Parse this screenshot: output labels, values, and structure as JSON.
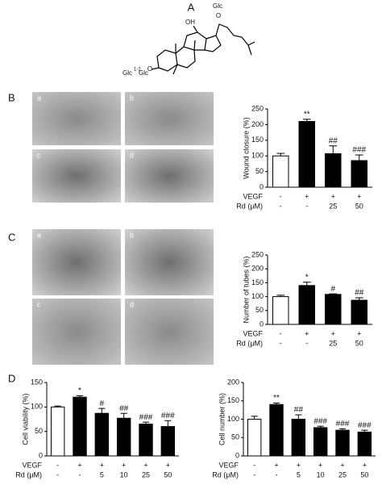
{
  "panels": {
    "labels": [
      "A",
      "B",
      "C",
      "D"
    ],
    "image_labels_b": [
      "a",
      "b",
      "c",
      "d"
    ],
    "image_labels_c": [
      "a",
      "b",
      "c",
      "d"
    ]
  },
  "structure": {
    "labels": [
      "OH",
      "Glc",
      "O",
      "Glc",
      "1-2",
      "Glc",
      "O"
    ]
  },
  "chart_data": [
    {
      "type": "bar",
      "y_label": "Wound closure (%)",
      "ylim": [
        0,
        250
      ],
      "yticks": [
        0,
        50,
        100,
        150,
        200,
        250
      ],
      "values": [
        100,
        210,
        107,
        85
      ],
      "errors": [
        8,
        7,
        25,
        18
      ],
      "colors": [
        "#ffffff",
        "#000000",
        "#000000",
        "#000000"
      ],
      "annotations": [
        null,
        "**",
        "##",
        "###"
      ],
      "rows": [
        {
          "label": "VEGF",
          "values": [
            "-",
            "+",
            "+",
            "+"
          ]
        },
        {
          "label": "Rd (μM)",
          "values": [
            "-",
            "-",
            "25",
            "50"
          ]
        }
      ]
    },
    {
      "type": "bar",
      "y_label": "Number of tubes (%)",
      "ylim": [
        0,
        250
      ],
      "yticks": [
        0,
        50,
        100,
        150,
        200,
        250
      ],
      "values": [
        100,
        140,
        108,
        87
      ],
      "errors": [
        5,
        12,
        2,
        9
      ],
      "colors": [
        "#ffffff",
        "#000000",
        "#000000",
        "#000000"
      ],
      "annotations": [
        null,
        "*",
        "#",
        "##"
      ],
      "rows": [
        {
          "label": "VEGF",
          "values": [
            "-",
            "+",
            "+",
            "+"
          ]
        },
        {
          "label": "Rd (μM)",
          "values": [
            "-",
            "-",
            "25",
            "50"
          ]
        }
      ]
    },
    {
      "type": "bar",
      "y_label": "Cell viability (%)",
      "ylim": [
        0,
        150
      ],
      "yticks": [
        0,
        50,
        100,
        150
      ],
      "values": [
        100,
        120,
        87,
        77,
        65,
        60
      ],
      "errors": [
        2,
        3,
        10,
        10,
        4,
        12
      ],
      "colors": [
        "#ffffff",
        "#000000",
        "#000000",
        "#000000",
        "#000000",
        "#000000"
      ],
      "annotations": [
        null,
        "*",
        "#",
        "##",
        "###",
        "###"
      ],
      "rows": [
        {
          "label": "VEGF",
          "values": [
            "-",
            "+",
            "+",
            "+",
            "+",
            "+"
          ]
        },
        {
          "label": "Rd (μM)",
          "values": [
            "-",
            "-",
            "5",
            "10",
            "25",
            "50"
          ]
        }
      ]
    },
    {
      "type": "bar",
      "y_label": "Cell number (%)",
      "ylim": [
        0,
        200
      ],
      "yticks": [
        0,
        50,
        100,
        150,
        200
      ],
      "values": [
        100,
        140,
        100,
        77,
        70,
        65
      ],
      "errors": [
        8,
        4,
        12,
        4,
        4,
        5
      ],
      "colors": [
        "#ffffff",
        "#000000",
        "#000000",
        "#000000",
        "#000000",
        "#000000"
      ],
      "annotations": [
        null,
        "**",
        "##",
        "###",
        "###",
        "###"
      ],
      "rows": [
        {
          "label": "VEGF",
          "values": [
            "-",
            "+",
            "+",
            "+",
            "+",
            "+"
          ]
        },
        {
          "label": "Rd (μM)",
          "values": [
            "-",
            "-",
            "5",
            "10",
            "25",
            "50"
          ]
        }
      ]
    }
  ]
}
